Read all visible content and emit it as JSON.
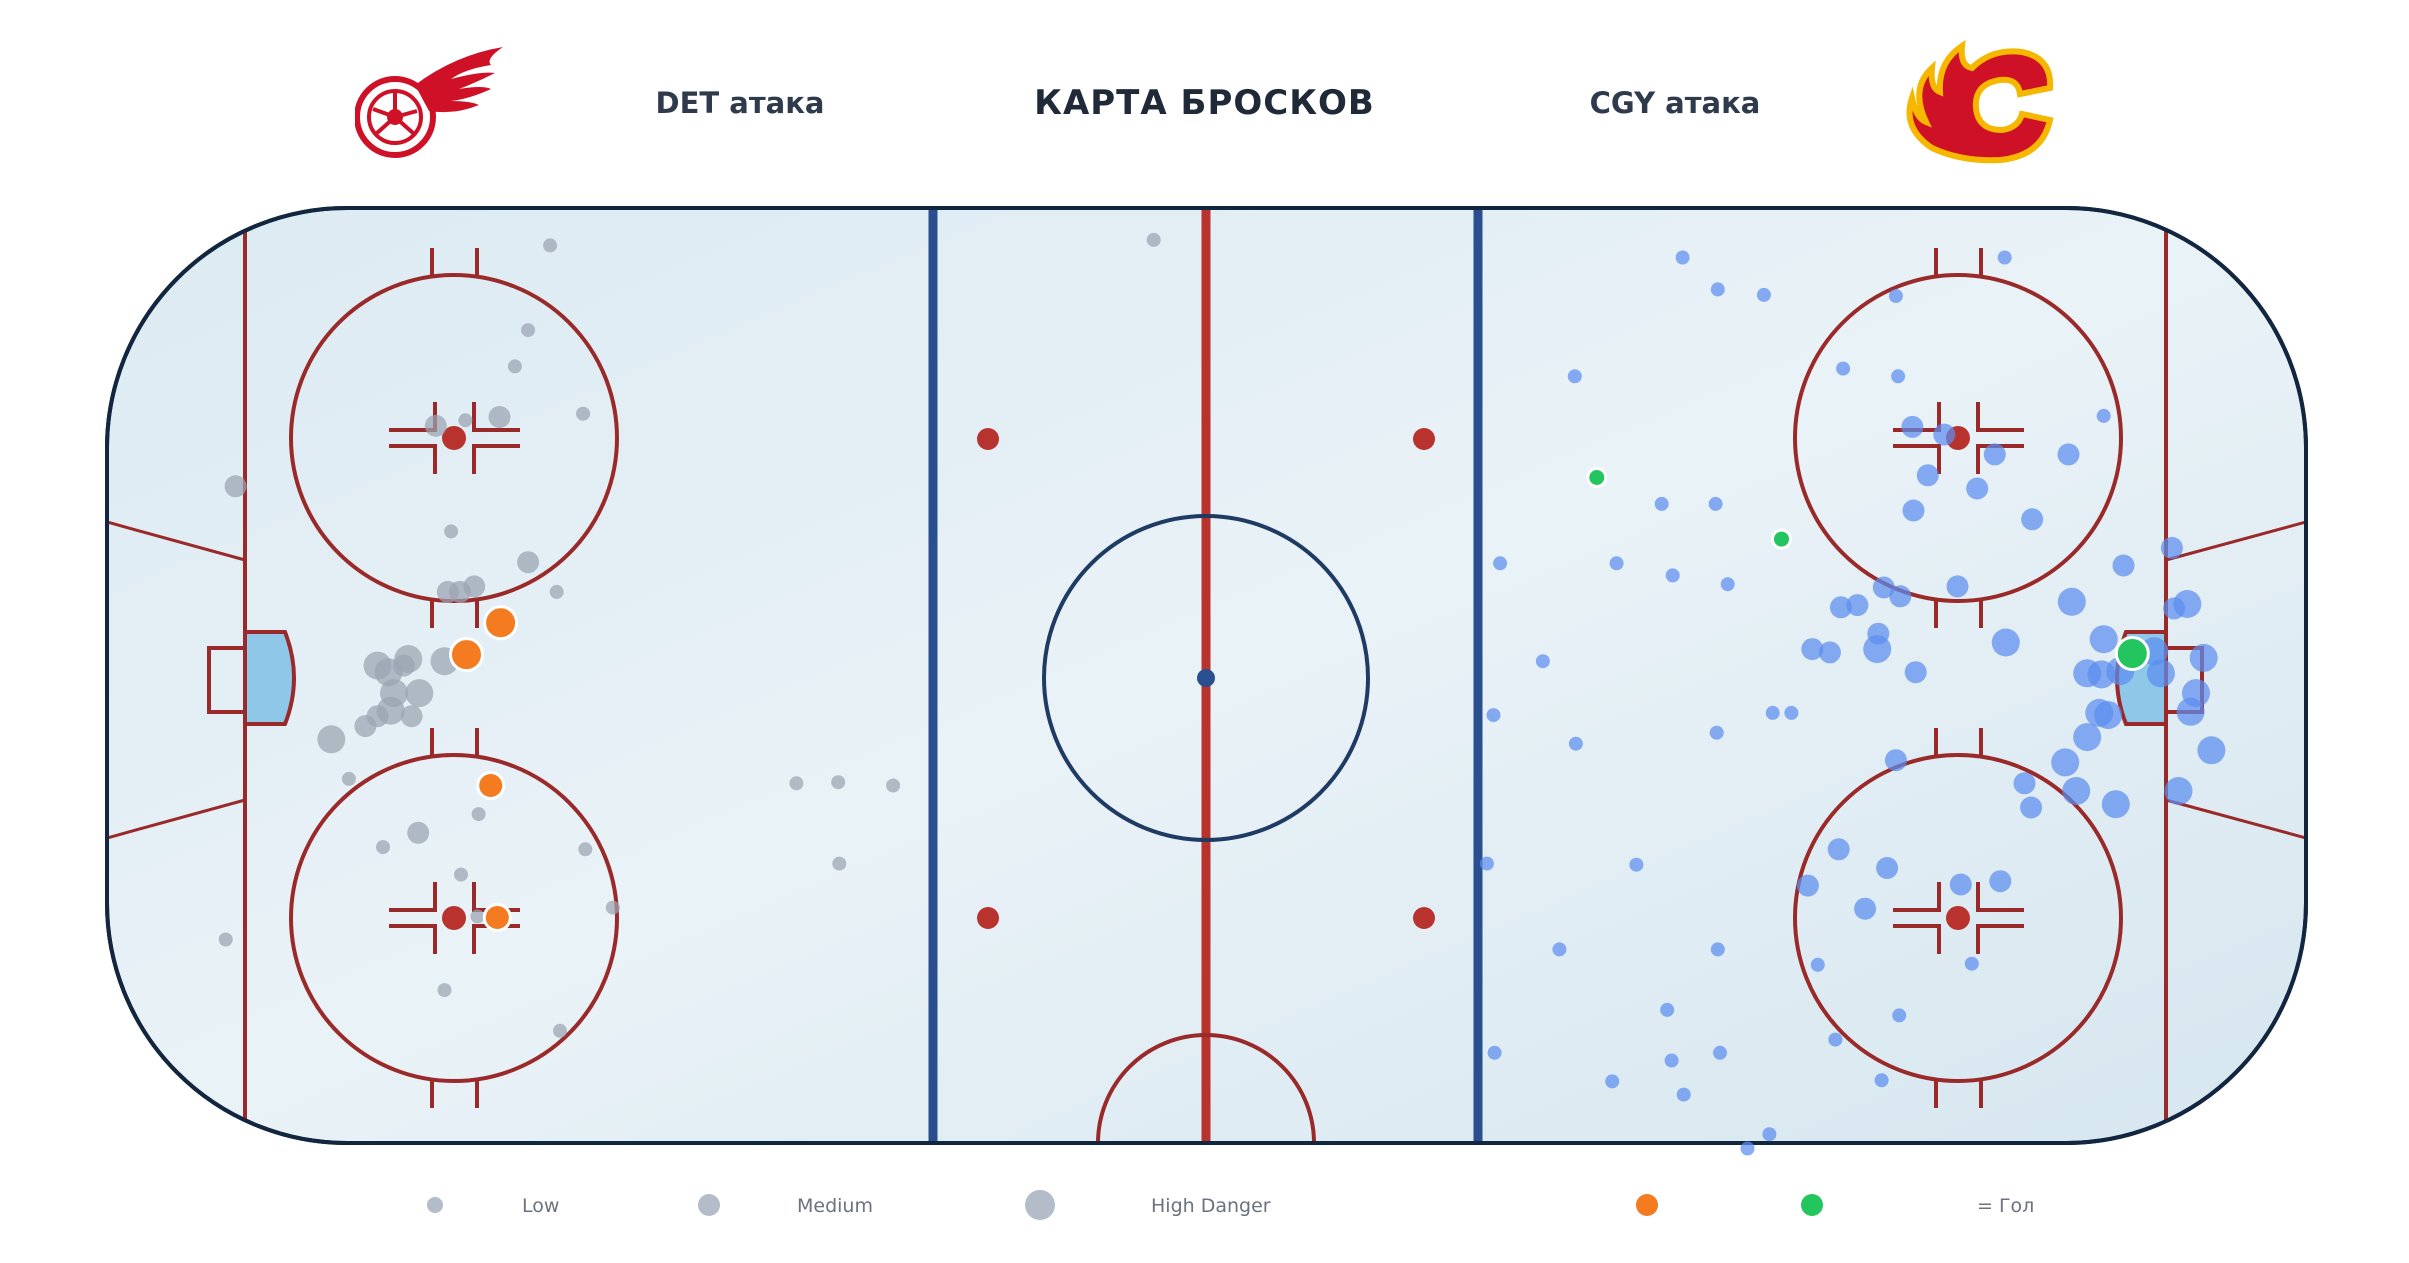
{
  "header": {
    "title": "КАРТА БРОСКОВ",
    "det_label": "DET атака",
    "cgy_label": "CGY атака"
  },
  "legend": {
    "low": "Low",
    "medium": "Medium",
    "high": "High Danger",
    "goal": "= Гол"
  },
  "colors": {
    "det_shot": "#9aa3b2",
    "det_goal": "#f47b20",
    "cgy_shot": "#5b8def",
    "cgy_goal": "#22c55e",
    "rink_red": "#9a2a2a",
    "blue_line": "#2a4f8f"
  },
  "icons": {
    "det_logo": "red-wings-logo-icon",
    "cgy_logo": "flames-logo-icon"
  },
  "chart_data": {
    "type": "scatter",
    "x_range": [
      -100,
      100
    ],
    "y_range": [
      -42.5,
      42.5
    ],
    "series": [
      {
        "team": "DET",
        "points": [
          [
            -59.7,
            39.1,
            1
          ],
          [
            -61.7,
            31.4,
            1
          ],
          [
            -62.9,
            28.1,
            1
          ],
          [
            -70.1,
            22.7,
            2
          ],
          [
            -67.4,
            23.2,
            1
          ],
          [
            -64.3,
            23.5,
            2
          ],
          [
            -56.7,
            23.8,
            1
          ],
          [
            -88.3,
            17.2,
            2
          ],
          [
            -68.7,
            13.1,
            1
          ],
          [
            -61.7,
            10.3,
            2
          ],
          [
            -66.6,
            8.1,
            2
          ],
          [
            -67.9,
            7.6,
            2
          ],
          [
            -69.0,
            7.6,
            2
          ],
          [
            -75.4,
            0.9,
            3
          ],
          [
            -73.0,
            0.9,
            2
          ],
          [
            -69.3,
            1.3,
            3
          ],
          [
            -72.6,
            1.5,
            3
          ],
          [
            -74.4,
            0.3,
            3
          ],
          [
            -73.9,
            -1.6,
            3
          ],
          [
            -71.6,
            -1.6,
            3
          ],
          [
            -74.2,
            -3.2,
            3
          ],
          [
            -75.4,
            -3.7,
            2
          ],
          [
            -72.3,
            -3.7,
            2
          ],
          [
            -76.5,
            -4.6,
            2
          ],
          [
            -79.6,
            -5.8,
            3
          ],
          [
            -59.1,
            7.6,
            1
          ],
          [
            -78.0,
            -9.4,
            1
          ],
          [
            -37.3,
            -9.8,
            1
          ],
          [
            -74.9,
            -15.6,
            1
          ],
          [
            -71.7,
            -14.3,
            2
          ],
          [
            -66.2,
            -12.6,
            1
          ],
          [
            -56.5,
            -15.8,
            1
          ],
          [
            -67.8,
            -18.1,
            1
          ],
          [
            -33.4,
            -17.1,
            1
          ],
          [
            -33.5,
            -9.7,
            1
          ],
          [
            -28.5,
            -10.0,
            1
          ],
          [
            -54.0,
            -21.1,
            1
          ],
          [
            -69.3,
            -28.6,
            1
          ],
          [
            -58.8,
            -32.3,
            1
          ],
          [
            -4.8,
            39.6,
            1
          ],
          [
            -66.3,
            -21.9,
            1
          ],
          [
            -89.2,
            -24.0,
            1
          ]
        ],
        "goals": [
          [
            -64.2,
            4.8,
            3
          ],
          [
            -67.3,
            1.9,
            3
          ],
          [
            -65.1,
            -10.0,
            2
          ],
          [
            -64.5,
            -22.0,
            2
          ]
        ]
      },
      {
        "team": "CGY",
        "points": [
          [
            43.3,
            38.0,
            1
          ],
          [
            46.5,
            35.1,
            1
          ],
          [
            50.7,
            34.6,
            1
          ],
          [
            62.7,
            34.5,
            1
          ],
          [
            72.6,
            38.0,
            1
          ],
          [
            33.5,
            27.2,
            1
          ],
          [
            57.9,
            27.9,
            1
          ],
          [
            62.9,
            27.2,
            1
          ],
          [
            81.6,
            23.6,
            1
          ],
          [
            64.2,
            22.6,
            2
          ],
          [
            67.1,
            21.9,
            2
          ],
          [
            71.7,
            20.1,
            2
          ],
          [
            78.4,
            20.1,
            2
          ],
          [
            65.6,
            18.2,
            2
          ],
          [
            70.1,
            17.0,
            2
          ],
          [
            41.4,
            15.6,
            1
          ],
          [
            46.3,
            15.6,
            1
          ],
          [
            64.3,
            15.0,
            2
          ],
          [
            75.1,
            14.2,
            2
          ],
          [
            87.8,
            11.6,
            2
          ],
          [
            26.7,
            10.2,
            1
          ],
          [
            37.3,
            10.2,
            1
          ],
          [
            42.4,
            9.1,
            1
          ],
          [
            83.4,
            10.0,
            2
          ],
          [
            47.4,
            8.3,
            1
          ],
          [
            61.6,
            8.0,
            2
          ],
          [
            63.1,
            7.2,
            2
          ],
          [
            68.3,
            8.1,
            2
          ],
          [
            57.7,
            6.2,
            2
          ],
          [
            59.2,
            6.4,
            2
          ],
          [
            78.7,
            6.7,
            3
          ],
          [
            89.2,
            6.5,
            3
          ],
          [
            88.0,
            6.1,
            2
          ],
          [
            90.7,
            1.6,
            3
          ],
          [
            86.2,
            2.2,
            3
          ],
          [
            72.7,
            3.0,
            3
          ],
          [
            81.6,
            3.3,
            3
          ],
          [
            61.1,
            3.8,
            2
          ],
          [
            61.0,
            2.4,
            3
          ],
          [
            56.7,
            2.1,
            2
          ],
          [
            55.1,
            2.4,
            2
          ],
          [
            64.5,
            0.3,
            2
          ],
          [
            80.1,
            0.2,
            3
          ],
          [
            30.6,
            1.3,
            1
          ],
          [
            83.1,
            0.4,
            3
          ],
          [
            86.8,
            0.2,
            3
          ],
          [
            81.4,
            0.1,
            3
          ],
          [
            90.0,
            -1.6,
            3
          ],
          [
            46.4,
            -5.2,
            1
          ],
          [
            33.6,
            -6.2,
            1
          ],
          [
            81.2,
            -3.4,
            3
          ],
          [
            89.5,
            -3.3,
            3
          ],
          [
            26.1,
            -3.6,
            1
          ],
          [
            51.5,
            -3.4,
            1
          ],
          [
            53.2,
            -3.4,
            1
          ],
          [
            80.1,
            -5.6,
            3
          ],
          [
            91.4,
            -6.8,
            3
          ],
          [
            82.0,
            -3.6,
            3
          ],
          [
            62.7,
            -7.7,
            2
          ],
          [
            88.4,
            -10.5,
            3
          ],
          [
            78.1,
            -7.9,
            3
          ],
          [
            74.4,
            -9.8,
            2
          ],
          [
            79.1,
            -10.5,
            3
          ],
          [
            82.7,
            -11.7,
            3
          ],
          [
            75.0,
            -12.0,
            2
          ],
          [
            25.5,
            -17.1,
            1
          ],
          [
            39.1,
            -17.2,
            1
          ],
          [
            57.5,
            -15.8,
            2
          ],
          [
            61.9,
            -17.5,
            2
          ],
          [
            54.7,
            -19.1,
            2
          ],
          [
            68.6,
            -19.0,
            2
          ],
          [
            59.9,
            -21.2,
            2
          ],
          [
            72.2,
            -18.7,
            2
          ],
          [
            63.0,
            -30.9,
            1
          ],
          [
            57.2,
            -33.1,
            1
          ],
          [
            32.1,
            -24.9,
            1
          ],
          [
            46.5,
            -24.9,
            1
          ],
          [
            55.6,
            -26.3,
            1
          ],
          [
            69.6,
            -26.2,
            1
          ],
          [
            41.9,
            -30.4,
            1
          ],
          [
            46.7,
            -34.3,
            1
          ],
          [
            43.4,
            -38.1,
            1
          ],
          [
            49.2,
            -43.0,
            1
          ],
          [
            61.4,
            -36.8,
            1
          ],
          [
            26.2,
            -34.3,
            1
          ],
          [
            42.3,
            -35.0,
            1
          ],
          [
            51.2,
            -41.7,
            1
          ],
          [
            36.9,
            -36.9,
            1
          ]
        ],
        "goals": [
          [
            35.5,
            18.0,
            1
          ],
          [
            52.3,
            12.4,
            1
          ],
          [
            84.2,
            2.0,
            3
          ]
        ]
      }
    ]
  }
}
